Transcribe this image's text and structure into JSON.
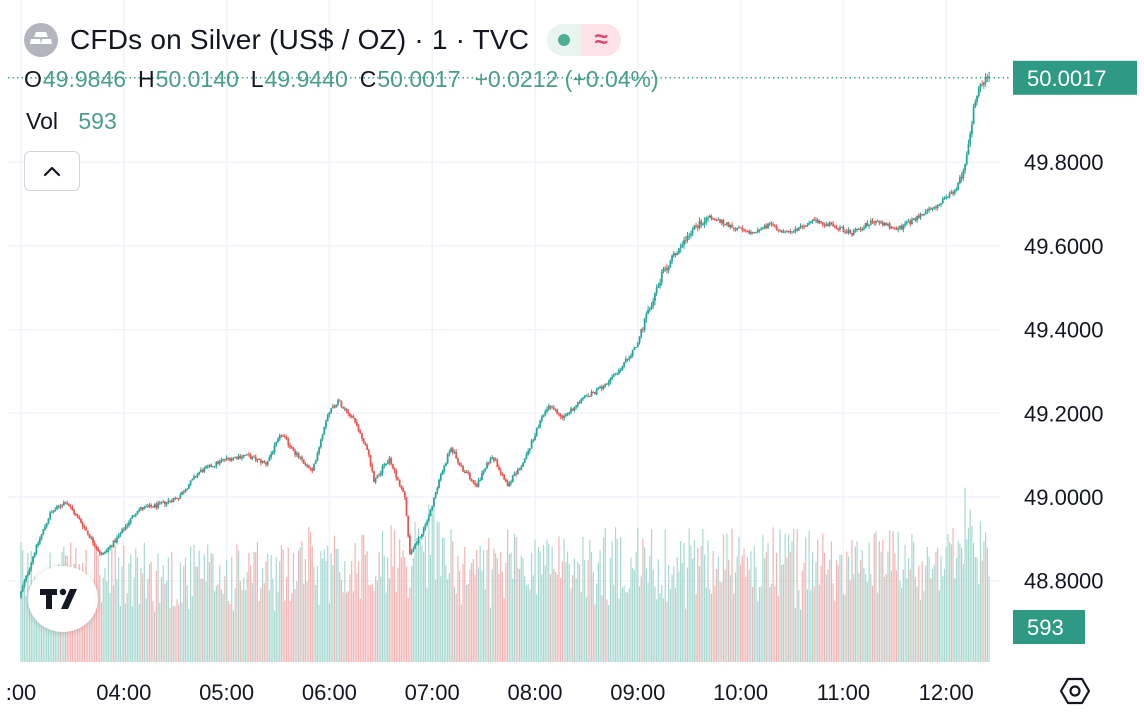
{
  "header": {
    "title": "CFDs on Silver (US$ / OZ) · 1 · TVC",
    "icon": "silver-bars-icon",
    "status_live_icon": "market-open-dot-icon",
    "status_delayed_icon": "delayed-data-icon",
    "status_delayed_glyph": "≈"
  },
  "ohlc": {
    "open_label": "O",
    "open": "49.9846",
    "high_label": "H",
    "high": "50.0140",
    "low_label": "L",
    "low": "49.9440",
    "close_label": "C",
    "close": "50.0017",
    "change": "+0.0212 (+0.04%)"
  },
  "volume": {
    "label": "Vol",
    "value": "593"
  },
  "colors": {
    "up": "#26a69a",
    "down": "#ef5350",
    "up_text": "#4a9e88",
    "badge": "#2e9a83"
  },
  "chart_data": {
    "type": "candlestick",
    "interval": "1 minute",
    "y_tick_labels": [
      "49.8000",
      "49.6000",
      "49.4000",
      "49.2000",
      "49.0000",
      "48.8000"
    ],
    "y_ticks": [
      49.8,
      49.6,
      49.4,
      49.2,
      49.0,
      48.8
    ],
    "ylim": [
      48.65,
      50.2
    ],
    "x_tick_labels": [
      ":00",
      "04:00",
      "05:00",
      "06:00",
      "07:00",
      "08:00",
      "09:00",
      "10:00",
      "11:00",
      "12:00"
    ],
    "x_ticks_hours": [
      3,
      4,
      5,
      6,
      7,
      8,
      9,
      10,
      11,
      12
    ],
    "xlim_hours": [
      3.0,
      12.5
    ],
    "price_trend": [
      [
        3.0,
        48.76
      ],
      [
        3.15,
        48.87
      ],
      [
        3.3,
        48.96
      ],
      [
        3.45,
        48.99
      ],
      [
        3.6,
        48.94
      ],
      [
        3.8,
        48.86
      ],
      [
        3.95,
        48.9
      ],
      [
        4.15,
        48.97
      ],
      [
        4.35,
        48.98
      ],
      [
        4.55,
        49.0
      ],
      [
        4.75,
        49.06
      ],
      [
        5.0,
        49.09
      ],
      [
        5.2,
        49.1
      ],
      [
        5.4,
        49.08
      ],
      [
        5.55,
        49.15
      ],
      [
        5.7,
        49.1
      ],
      [
        5.85,
        49.06
      ],
      [
        6.0,
        49.2
      ],
      [
        6.1,
        49.23
      ],
      [
        6.25,
        49.19
      ],
      [
        6.4,
        49.1
      ],
      [
        6.45,
        49.04
      ],
      [
        6.6,
        49.09
      ],
      [
        6.75,
        49.0
      ],
      [
        6.8,
        48.86
      ],
      [
        6.95,
        48.93
      ],
      [
        7.1,
        49.05
      ],
      [
        7.2,
        49.12
      ],
      [
        7.3,
        49.07
      ],
      [
        7.45,
        49.03
      ],
      [
        7.6,
        49.1
      ],
      [
        7.75,
        49.03
      ],
      [
        7.9,
        49.08
      ],
      [
        8.05,
        49.17
      ],
      [
        8.15,
        49.22
      ],
      [
        8.3,
        49.19
      ],
      [
        8.45,
        49.23
      ],
      [
        8.6,
        49.25
      ],
      [
        8.8,
        49.29
      ],
      [
        9.0,
        49.36
      ],
      [
        9.1,
        49.43
      ],
      [
        9.25,
        49.53
      ],
      [
        9.4,
        49.59
      ],
      [
        9.55,
        49.64
      ],
      [
        9.7,
        49.67
      ],
      [
        9.9,
        49.65
      ],
      [
        10.1,
        49.63
      ],
      [
        10.3,
        49.65
      ],
      [
        10.5,
        49.63
      ],
      [
        10.7,
        49.66
      ],
      [
        10.9,
        49.65
      ],
      [
        11.1,
        49.63
      ],
      [
        11.3,
        49.66
      ],
      [
        11.55,
        49.64
      ],
      [
        11.75,
        49.67
      ],
      [
        11.95,
        49.7
      ],
      [
        12.1,
        49.73
      ],
      [
        12.2,
        49.79
      ],
      [
        12.28,
        49.92
      ],
      [
        12.35,
        49.99
      ],
      [
        12.43,
        50.0
      ]
    ],
    "last_price_label": "50.0017",
    "last_price": 50.0017,
    "last_volume_label": "593",
    "volume_max": 1000
  }
}
